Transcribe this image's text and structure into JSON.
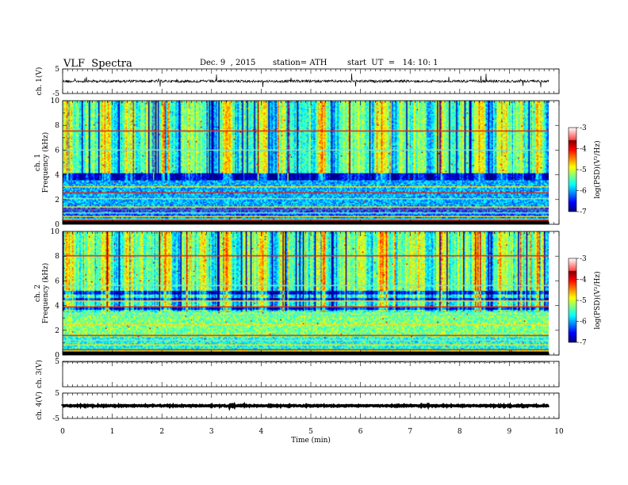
{
  "header": {
    "title": "VLF  Spectra",
    "date": "Dec. 9  , 2015",
    "station": "station= ATH",
    "start": "start  UT  =   14: 10: 1"
  },
  "chart_data": [
    {
      "type": "line",
      "panel": "ch1-waveform",
      "ylabel": "ch. 1(V)",
      "ylim": [
        -5,
        5
      ],
      "yticks": [
        "5",
        "-5"
      ],
      "xlim": [
        0,
        10
      ],
      "baseline": 0,
      "data_end_min": 9.8
    },
    {
      "type": "heatmap",
      "panel": "ch1-spectrogram",
      "ylabel": [
        "ch. 1",
        "Frequency  (kHz)"
      ],
      "ylim": [
        0,
        10
      ],
      "yticks": [
        "0",
        "2",
        "4",
        "6",
        "8",
        "10"
      ],
      "xlim": [
        0,
        10
      ],
      "data_end_min": 9.8,
      "colorbar": {
        "label": "log(PSD)(V²/Hz)",
        "range": [
          -7,
          -3
        ],
        "ticks": [
          "-3",
          "-4",
          "-5",
          "-6",
          "-7"
        ]
      }
    },
    {
      "type": "heatmap",
      "panel": "ch2-spectrogram",
      "ylabel": [
        "ch. 2",
        "Frequency  (kHz)"
      ],
      "ylim": [
        0,
        10
      ],
      "yticks": [
        "0",
        "2",
        "4",
        "6",
        "8",
        "10"
      ],
      "xlim": [
        0,
        10
      ],
      "data_end_min": 9.8,
      "colorbar": {
        "label": "log(PSD)(V²/Hz)",
        "range": [
          -7,
          -3
        ],
        "ticks": [
          "-3",
          "-4",
          "-5",
          "-6",
          "-7"
        ]
      }
    },
    {
      "type": "line",
      "panel": "ch3-waveform",
      "ylabel": "ch. 3(V)",
      "ylim": [
        -5,
        5
      ],
      "yticks": [
        "5"
      ],
      "xlim": [
        0,
        10
      ],
      "baseline": 4.7,
      "data_end_min": 9.8
    },
    {
      "type": "line",
      "panel": "ch4-waveform",
      "ylabel": "ch. 4(V)",
      "ylim": [
        -5,
        5
      ],
      "yticks": [
        "5",
        "-5"
      ],
      "xlim": [
        0,
        10
      ],
      "baseline": 0,
      "data_end_min": 9.8
    }
  ],
  "xaxis": {
    "label": "Time  (min)",
    "ticks": [
      "0",
      "1",
      "2",
      "3",
      "4",
      "5",
      "6",
      "7",
      "8",
      "9",
      "10"
    ]
  },
  "colors": {
    "ink": "#000000",
    "background": "#ffffff"
  }
}
